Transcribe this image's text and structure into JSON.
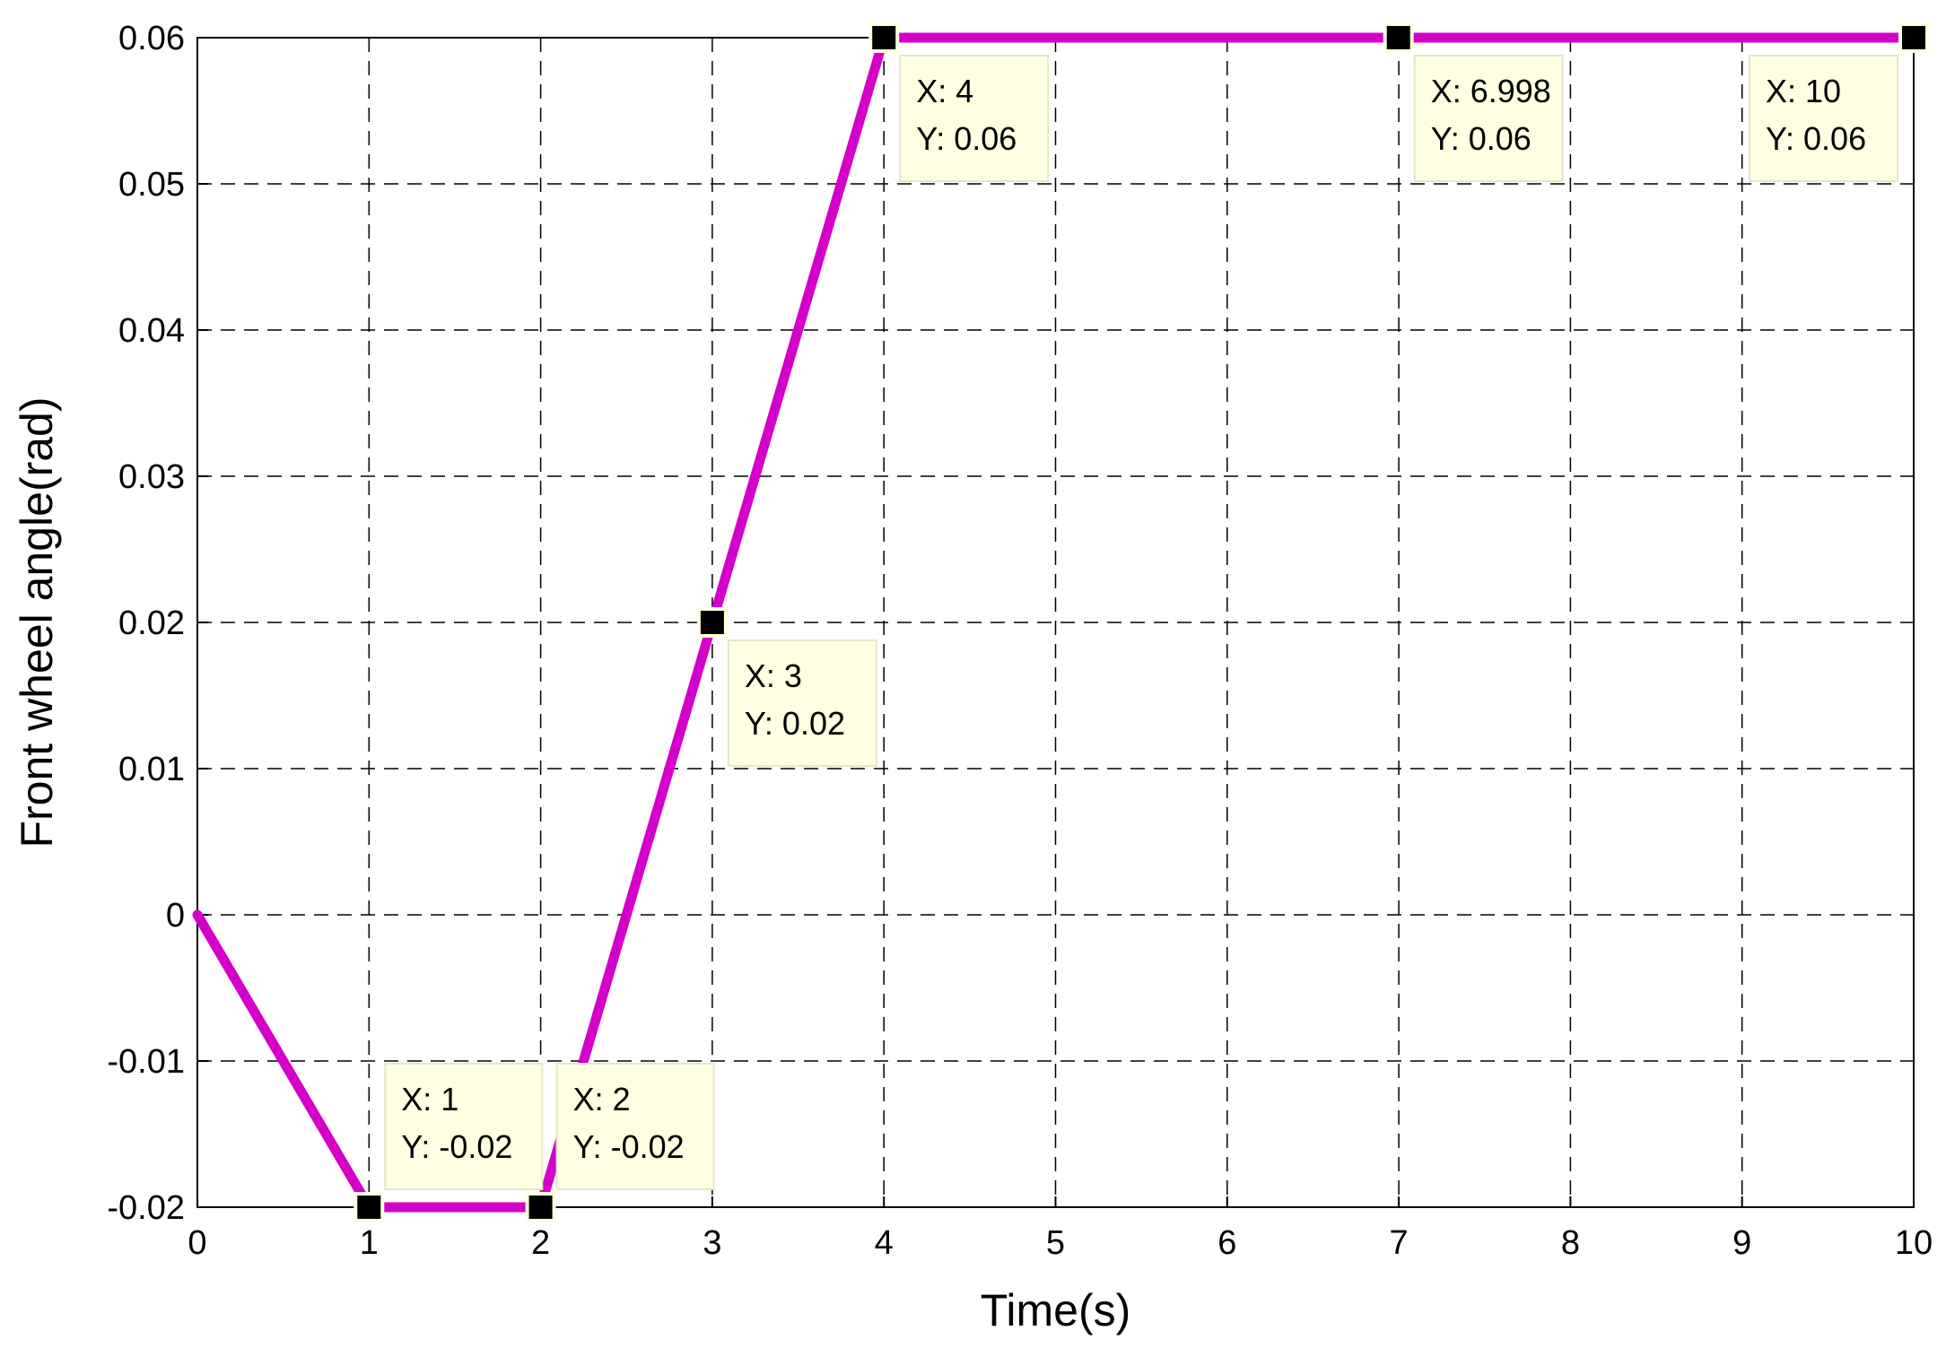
{
  "chart_data": {
    "type": "line",
    "xlabel": "Time(s)",
    "ylabel": "Front wheel angle(rad)",
    "xlim": [
      0,
      10
    ],
    "ylim": [
      -0.02,
      0.06
    ],
    "x_ticks": [
      "0",
      "1",
      "2",
      "3",
      "4",
      "5",
      "6",
      "7",
      "8",
      "9",
      "10"
    ],
    "y_ticks": [
      "-0.02",
      "-0.01",
      "0",
      "0.01",
      "0.02",
      "0.03",
      "0.04",
      "0.05",
      "0.06"
    ],
    "grid": true,
    "series": [
      {
        "color": "#d400c8",
        "x": [
          0,
          1,
          2,
          3,
          4,
          6.998,
          10
        ],
        "y": [
          0,
          -0.02,
          -0.02,
          0.02,
          0.06,
          0.06,
          0.06
        ]
      }
    ],
    "datatips": [
      {
        "x": 1,
        "y": -0.02,
        "x_text": "X: 1",
        "y_text": "Y: -0.02"
      },
      {
        "x": 2,
        "y": -0.02,
        "x_text": "X: 2",
        "y_text": "Y: -0.02"
      },
      {
        "x": 3,
        "y": 0.02,
        "x_text": "X: 3",
        "y_text": "Y: 0.02"
      },
      {
        "x": 4,
        "y": 0.06,
        "x_text": "X: 4",
        "y_text": "Y: 0.06"
      },
      {
        "x": 6.998,
        "y": 0.06,
        "x_text": "X: 6.998",
        "y_text": "Y: 0.06"
      },
      {
        "x": 10,
        "y": 0.06,
        "x_text": "X: 10",
        "y_text": "Y: 0.06"
      }
    ]
  }
}
